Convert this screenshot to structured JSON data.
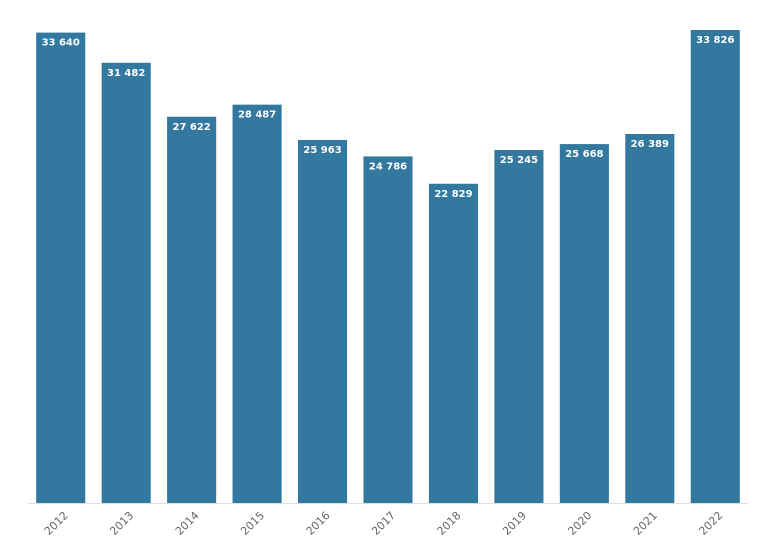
{
  "chart_data": {
    "type": "bar",
    "categories": [
      "2012",
      "2013",
      "2014",
      "2015",
      "2016",
      "2017",
      "2018",
      "2019",
      "2020",
      "2021",
      "2022"
    ],
    "values": [
      33640,
      31482,
      27622,
      28487,
      25963,
      24786,
      22829,
      25245,
      25668,
      26389,
      33826
    ],
    "value_labels": [
      "33 640",
      "31 482",
      "27 622",
      "28 487",
      "25 963",
      "24 786",
      "22 829",
      "25 245",
      "25 668",
      "26 389",
      "33 826"
    ],
    "color": "#32789f"
  }
}
